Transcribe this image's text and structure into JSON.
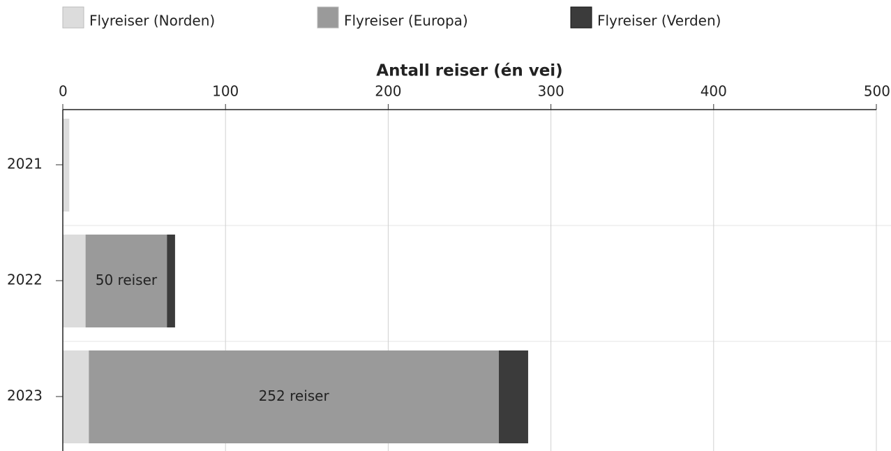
{
  "chart_data": {
    "type": "stacked_bar_horizontal",
    "x_label": "Antall reiser (én vei)",
    "categories": [
      "2021",
      "2022",
      "2023"
    ],
    "series": [
      {
        "name": "Flyreiser (Norden)",
        "color": "#dcdcdc",
        "values": [
          4,
          14,
          16
        ]
      },
      {
        "name": "Flyreiser (Europa)",
        "color": "#9a9a9a",
        "values": [
          0,
          50,
          252
        ],
        "value_labels": [
          null,
          "50 reiser",
          "252 reiser"
        ]
      },
      {
        "name": "Flyreiser (Verden)",
        "color": "#3b3b3b",
        "values": [
          0,
          5,
          18
        ]
      }
    ],
    "xlim": [
      0,
      500
    ],
    "xticks": [
      0,
      100,
      200,
      300,
      400,
      500
    ],
    "grid": true,
    "legend": "top"
  }
}
